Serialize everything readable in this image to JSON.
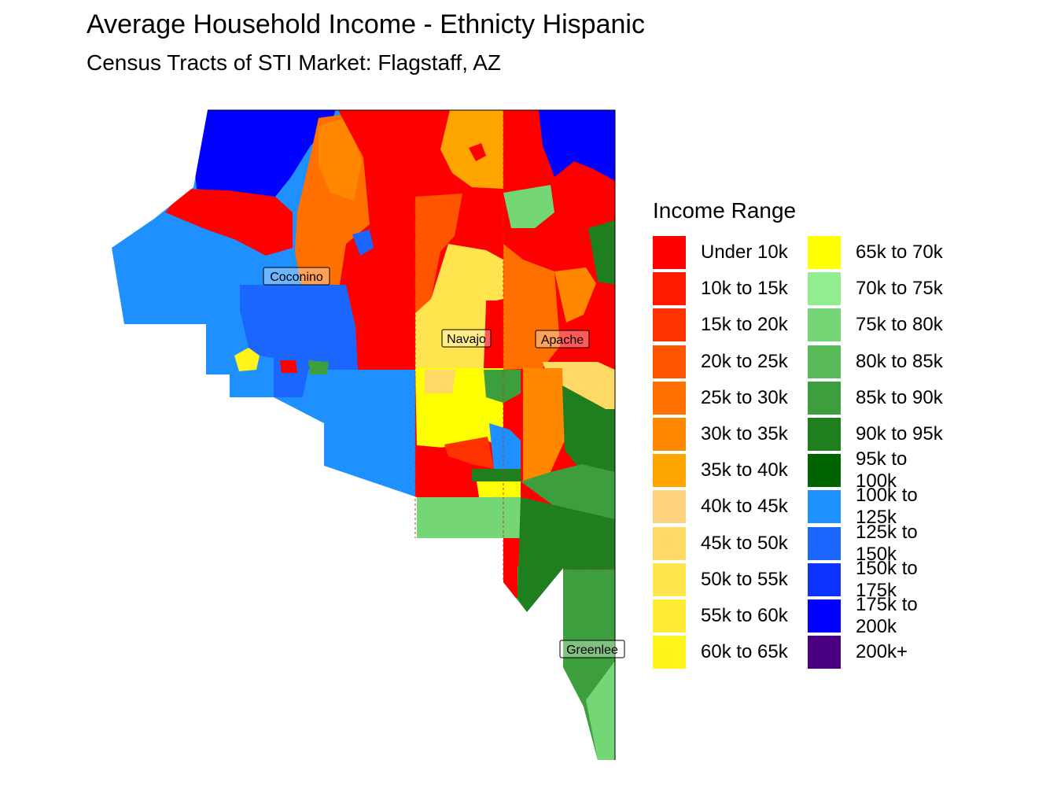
{
  "title": "Average Household Income - Ethnicty Hispanic",
  "subtitle": "Census Tracts of STI Market: Flagstaff, AZ",
  "counties": [
    "Coconino",
    "Navajo",
    "Apache",
    "Greenlee"
  ],
  "legend": {
    "title": "Income Range",
    "items": [
      {
        "label": "Under 10k",
        "color": "#FF0000"
      },
      {
        "label": "10k to 15k",
        "color": "#FF1A00"
      },
      {
        "label": "15k to 20k",
        "color": "#FF3300"
      },
      {
        "label": "20k to 25k",
        "color": "#FF5500"
      },
      {
        "label": "25k to 30k",
        "color": "#FF7000"
      },
      {
        "label": "30k to 35k",
        "color": "#FF8800"
      },
      {
        "label": "35k to 40k",
        "color": "#FFA500"
      },
      {
        "label": "40k to 45k",
        "color": "#FFD27F"
      },
      {
        "label": "45k to 50k",
        "color": "#FFD966"
      },
      {
        "label": "50k to 55k",
        "color": "#FFE44D"
      },
      {
        "label": "55k to 60k",
        "color": "#FFEB33"
      },
      {
        "label": "60k to 65k",
        "color": "#FFF51A"
      },
      {
        "label": "65k to 70k",
        "color": "#FFFF00"
      },
      {
        "label": "70k to 75k",
        "color": "#90EE90"
      },
      {
        "label": "75k to 80k",
        "color": "#74D674"
      },
      {
        "label": "80k to 85k",
        "color": "#58BB58"
      },
      {
        "label": "85k to 90k",
        "color": "#3D9E3D"
      },
      {
        "label": "90k to 95k",
        "color": "#1F7F1F"
      },
      {
        "label": "95k to 100k",
        "color": "#006400"
      },
      {
        "label": "100k to 125k",
        "color": "#1E90FF"
      },
      {
        "label": "125k to 150k",
        "color": "#1A66FF"
      },
      {
        "label": "150k to 175k",
        "color": "#0D33FF"
      },
      {
        "label": "175k to 200k",
        "color": "#0000FF"
      },
      {
        "label": "200k+",
        "color": "#4B0082"
      }
    ]
  }
}
